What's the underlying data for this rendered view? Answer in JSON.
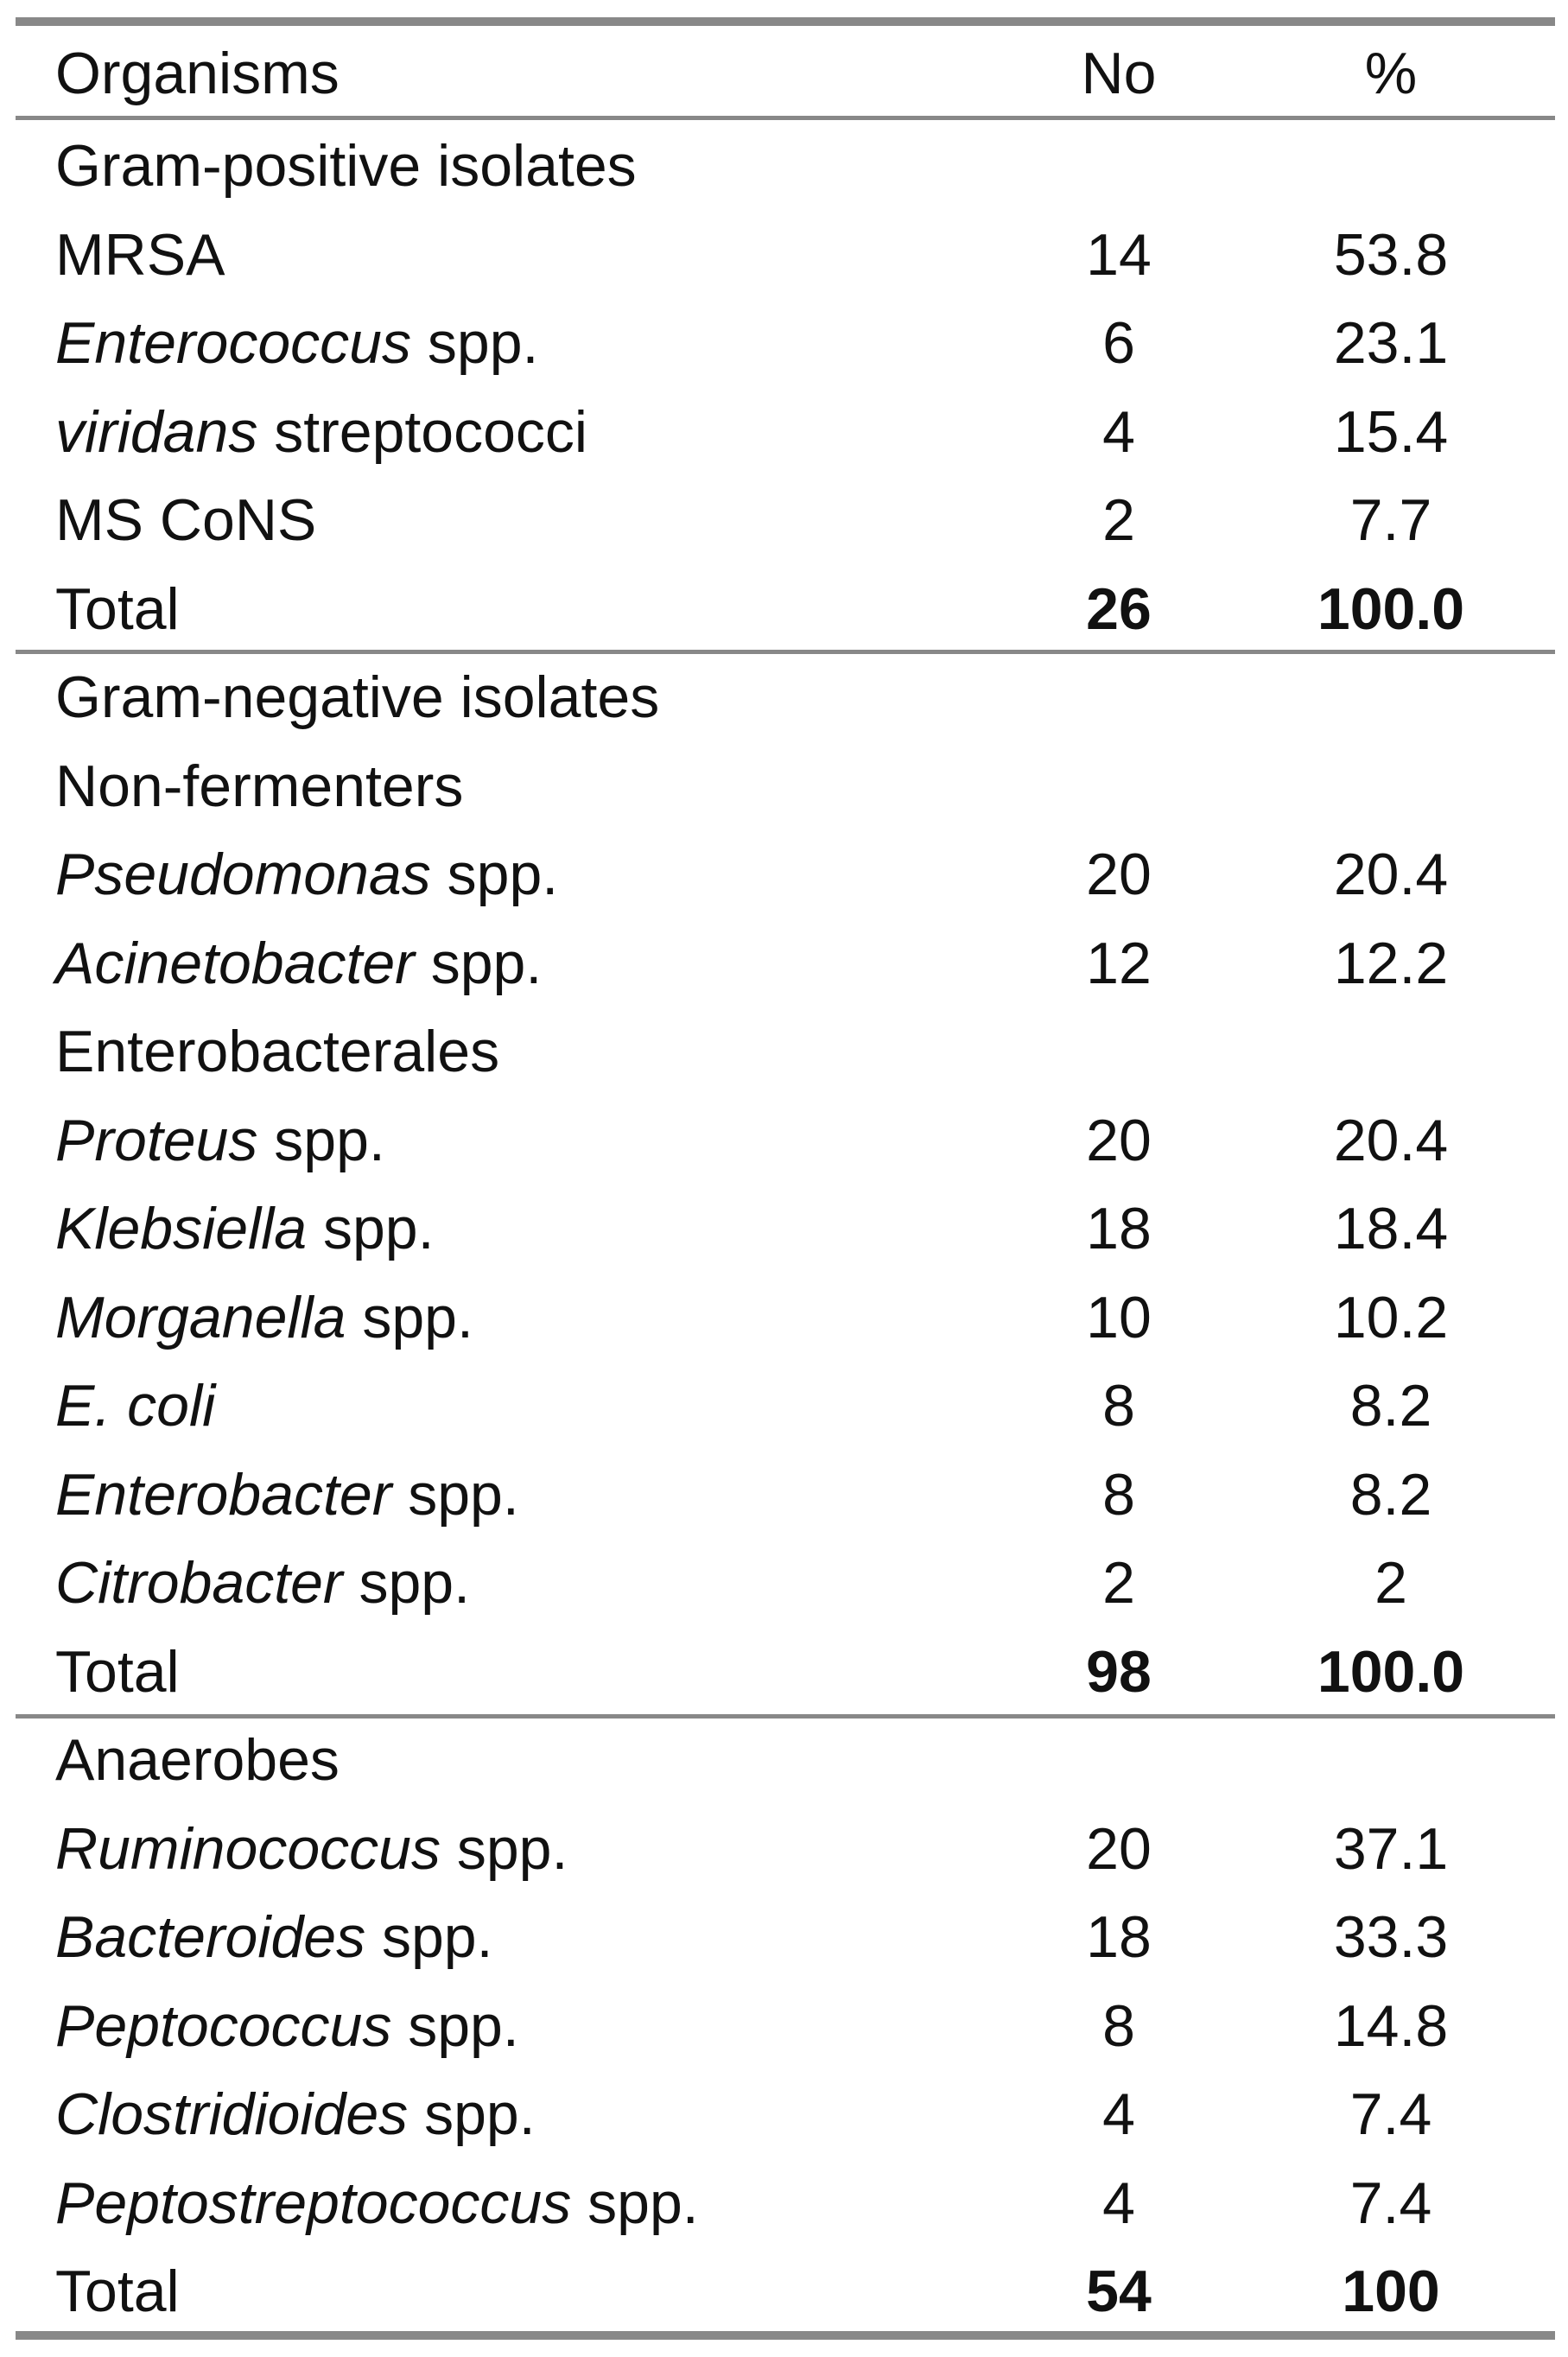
{
  "header": {
    "organisms": "Organisms",
    "no": "No",
    "pct": "%"
  },
  "rows": [
    {
      "type": "section",
      "label": "Gram-positive isolates"
    },
    {
      "type": "item",
      "it": "",
      "rest": "MRSA",
      "no": "14",
      "pct": "53.8"
    },
    {
      "type": "item",
      "it": "Enterococcus",
      "rest": " spp.",
      "no": "6",
      "pct": "23.1"
    },
    {
      "type": "item",
      "it": "viridans",
      "rest": " streptococci",
      "no": "4",
      "pct": "15.4"
    },
    {
      "type": "item",
      "it": "",
      "rest": "MS CoNS",
      "no": "2",
      "pct": "7.7"
    },
    {
      "type": "total",
      "label": "Total",
      "no": "26",
      "pct": "100.0"
    },
    {
      "type": "section",
      "label": "Gram-negative isolates"
    },
    {
      "type": "section",
      "label": "Non-fermenters"
    },
    {
      "type": "item",
      "it": "Pseudomonas",
      "rest": " spp.",
      "no": "20",
      "pct": "20.4"
    },
    {
      "type": "item",
      "it": "Acinetobacter",
      "rest": " spp.",
      "no": "12",
      "pct": "12.2"
    },
    {
      "type": "section",
      "label": "Enterobacterales"
    },
    {
      "type": "item",
      "it": "Proteus",
      "rest": " spp.",
      "no": "20",
      "pct": "20.4"
    },
    {
      "type": "item",
      "it": "Klebsiella",
      "rest": " spp.",
      "no": "18",
      "pct": "18.4"
    },
    {
      "type": "item",
      "it": "Morganella",
      "rest": " spp.",
      "no": "10",
      "pct": "10.2"
    },
    {
      "type": "item",
      "it": "E. coli",
      "rest": "",
      "no": "8",
      "pct": "8.2"
    },
    {
      "type": "item",
      "it": "Enterobacter",
      "rest": " spp.",
      "no": "8",
      "pct": "8.2"
    },
    {
      "type": "item",
      "it": "Citrobacter",
      "rest": " spp.",
      "no": "2",
      "pct": "2"
    },
    {
      "type": "total",
      "label": "Total",
      "no": "98",
      "pct": "100.0"
    },
    {
      "type": "section",
      "label": "Anaerobes"
    },
    {
      "type": "item",
      "it": "Ruminococcus",
      "rest": " spp.",
      "no": "20",
      "pct": "37.1"
    },
    {
      "type": "item",
      "it": "Bacteroides",
      "rest": " spp.",
      "no": "18",
      "pct": "33.3"
    },
    {
      "type": "item",
      "it": "Peptococcus",
      "rest": " spp.",
      "no": "8",
      "pct": "14.8"
    },
    {
      "type": "item",
      "it": "Clostridioides",
      "rest": " spp.",
      "no": "4",
      "pct": "7.4"
    },
    {
      "type": "item",
      "it": "Peptostreptococcus",
      "rest": " spp.",
      "no": "4",
      "pct": "7.4"
    },
    {
      "type": "total",
      "label": "Total",
      "no": "54",
      "pct": "100"
    }
  ]
}
